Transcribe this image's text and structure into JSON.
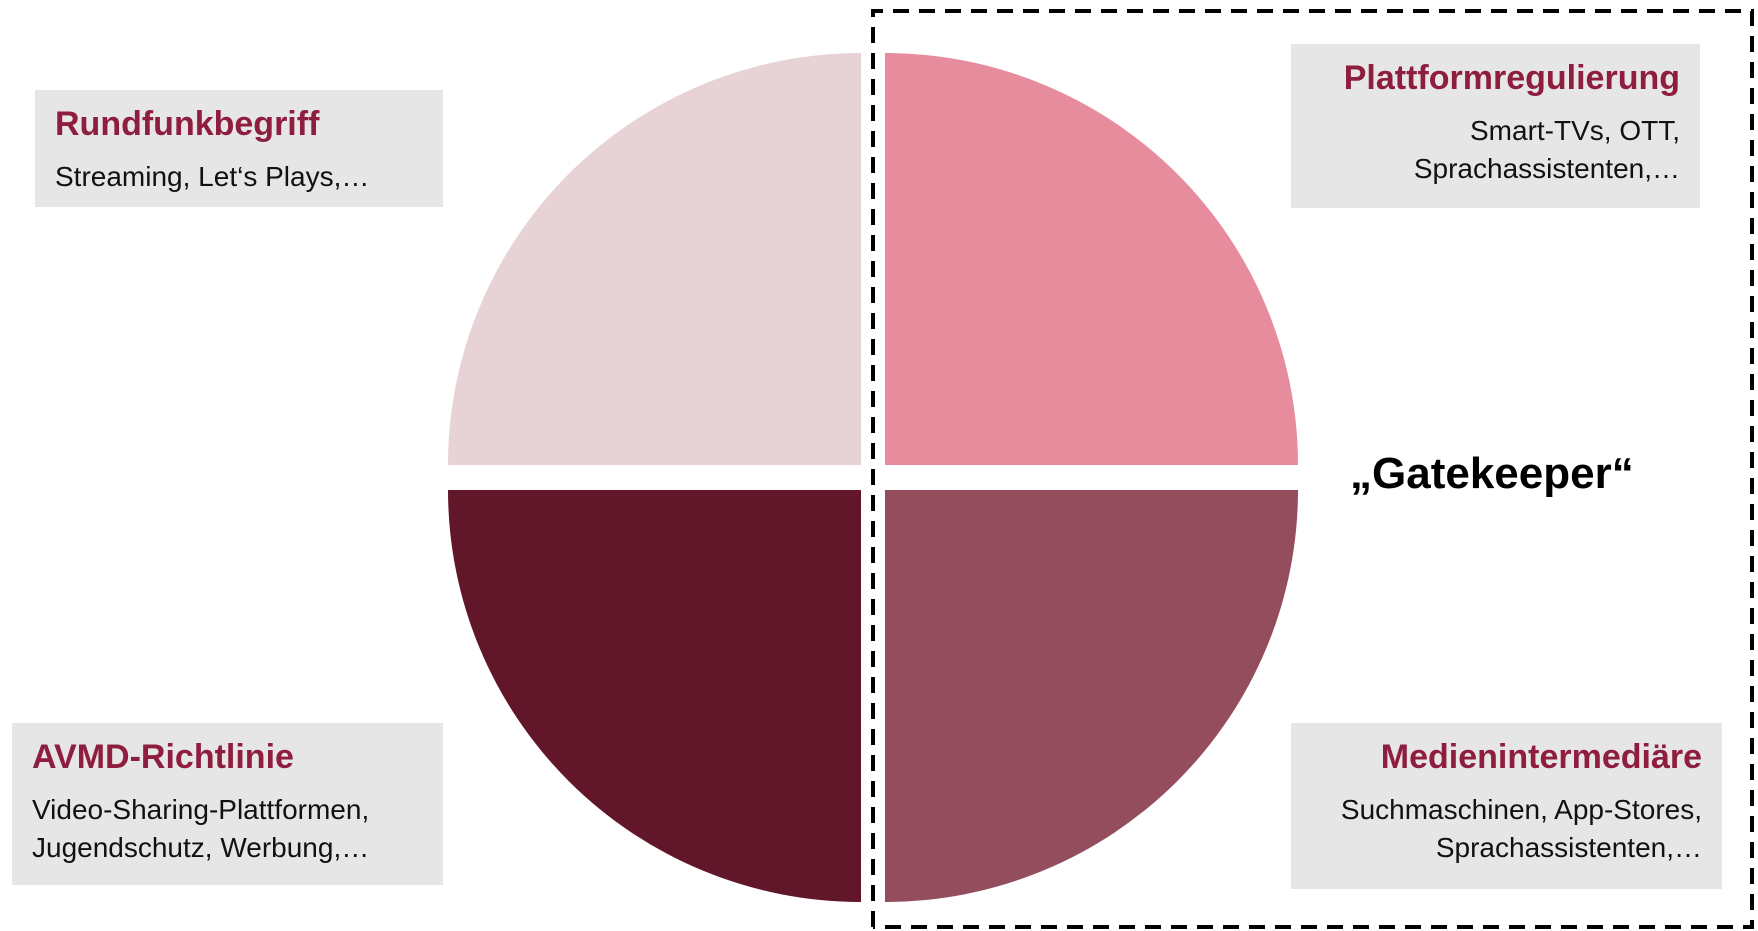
{
  "quadrants": [
    {
      "id": "top-left",
      "color": "#e7d3d6"
    },
    {
      "id": "top-right",
      "color": "#e68c9d"
    },
    {
      "id": "bottom-left",
      "color": "#621629"
    },
    {
      "id": "bottom-right",
      "color": "#944d5c"
    }
  ],
  "boxes": {
    "rundfunk": {
      "title": "Rundfunkbegriff",
      "lines": [
        "Streaming, Let‘s Plays,…"
      ]
    },
    "plattform": {
      "title": "Plattformregulierung",
      "lines": [
        "Smart-TVs, OTT,",
        "Sprachassistenten,…"
      ]
    },
    "avmd": {
      "title": "AVMD-Richtlinie",
      "lines": [
        "Video-Sharing-Plattformen,",
        "Jugendschutz, Werbung,…"
      ]
    },
    "intermediaere": {
      "title": "Medienintermediäre",
      "lines": [
        "Suchmaschinen, App-Stores,",
        "Sprachassistenten,…"
      ]
    }
  },
  "gatekeeper_label": "„Gatekeeper“",
  "colors": {
    "title": "#8e1d3f",
    "box_background": "#e7e6e6",
    "dashed_border": "#000000"
  }
}
